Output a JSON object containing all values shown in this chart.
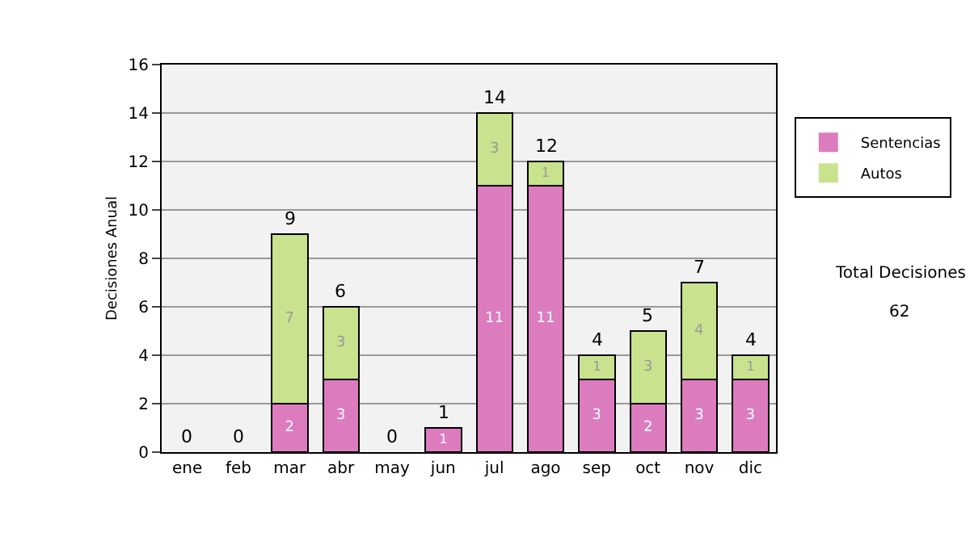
{
  "chart_data": {
    "type": "bar",
    "stacked": true,
    "categories": [
      "ene",
      "feb",
      "mar",
      "abr",
      "may",
      "jun",
      "jul",
      "ago",
      "sep",
      "oct",
      "nov",
      "dic"
    ],
    "series": [
      {
        "name": "Sentencias",
        "color": "#dc7cbf",
        "values": [
          0,
          0,
          2,
          3,
          0,
          1,
          11,
          11,
          3,
          2,
          3,
          3
        ],
        "value_labels": [
          null,
          null,
          "2",
          "3",
          null,
          "1",
          "11",
          "11",
          "3",
          "2",
          "3",
          "3"
        ]
      },
      {
        "name": "Autos",
        "color": "#c9e28e",
        "values": [
          0,
          0,
          7,
          3,
          0,
          0,
          3,
          1,
          1,
          3,
          4,
          1
        ],
        "value_labels": [
          null,
          null,
          "7",
          "3",
          null,
          null,
          "3",
          "1",
          "1",
          "3",
          "4",
          "1"
        ]
      }
    ],
    "totals": [
      "0",
      "0",
      "9",
      "6",
      "0",
      "1",
      "14",
      "12",
      "4",
      "5",
      "7",
      "4"
    ],
    "ylabel": "Decisiones Anual",
    "ylim": [
      0,
      16
    ],
    "yticks": [
      0,
      2,
      4,
      6,
      8,
      10,
      12,
      14,
      16
    ],
    "grid": "y",
    "legend": "right",
    "annotations": [
      "Total Decisiones",
      "62"
    ]
  }
}
